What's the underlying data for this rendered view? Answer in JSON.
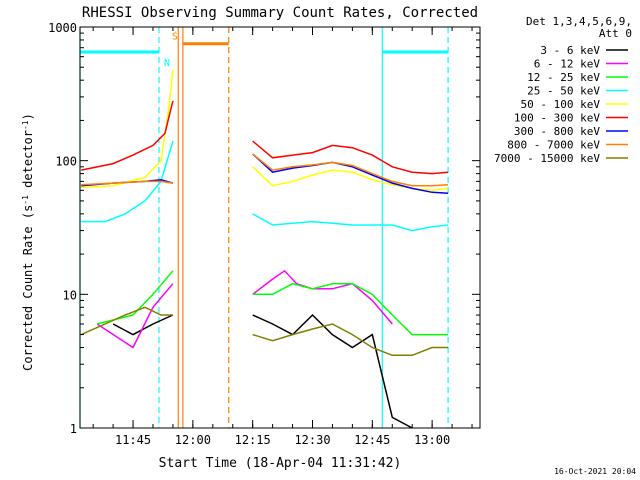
{
  "chart_data": {
    "type": "line",
    "title": "RHESSI Observing Summary Count Rates, Corrected",
    "xlabel": "Start Time (18-Apr-04 11:31:42)",
    "ylabel_parts": [
      "Corrected Count Rate (s",
      "-1",
      " detector",
      "-1",
      ")"
    ],
    "yscale": "log",
    "ylim": [
      1,
      1000
    ],
    "xlim": [
      "11:31:42",
      "13:12:00"
    ],
    "x_ticks": [
      {
        "label": "11:45",
        "t": "11:45"
      },
      {
        "label": "12:00",
        "t": "12:00"
      },
      {
        "label": "12:15",
        "t": "12:15"
      },
      {
        "label": "12:30",
        "t": "12:30"
      },
      {
        "label": "12:45",
        "t": "12:45"
      },
      {
        "label": "13:00",
        "t": "13:00"
      }
    ],
    "y_ticks": [
      {
        "label": "1",
        "v": 1
      },
      {
        "label": "10",
        "v": 10
      },
      {
        "label": "100",
        "v": 100
      },
      {
        "label": "1000",
        "v": 1000
      }
    ],
    "legend_header": [
      "Det 1,3,4,5,6,9,",
      "Att 0"
    ],
    "series": [
      {
        "name": "3 - 6 keV",
        "color": "#000000",
        "points": [
          [
            "11:40",
            6
          ],
          [
            "11:45",
            5
          ],
          [
            "11:50",
            6
          ],
          [
            "11:55",
            7
          ],
          [
            "12:15",
            7
          ],
          [
            "12:20",
            6
          ],
          [
            "12:25",
            5
          ],
          [
            "12:30",
            7
          ],
          [
            "12:35",
            5
          ],
          [
            "12:40",
            4
          ],
          [
            "12:45",
            5
          ],
          [
            "12:50",
            1.2
          ],
          [
            "12:55",
            1
          ]
        ]
      },
      {
        "name": "6 - 12 keV",
        "color": "#ff00ff",
        "points": [
          [
            "11:36",
            6
          ],
          [
            "11:45",
            4
          ],
          [
            "11:50",
            8
          ],
          [
            "11:55",
            12
          ],
          [
            "12:15",
            10
          ],
          [
            "12:20",
            13
          ],
          [
            "12:23",
            15
          ],
          [
            "12:26",
            12
          ],
          [
            "12:30",
            11
          ],
          [
            "12:35",
            11
          ],
          [
            "12:40",
            12
          ],
          [
            "12:45",
            9
          ],
          [
            "12:50",
            6
          ]
        ]
      },
      {
        "name": "12 - 25 keV",
        "color": "#00ff00",
        "points": [
          [
            "11:36",
            6
          ],
          [
            "11:45",
            7
          ],
          [
            "11:50",
            10
          ],
          [
            "11:55",
            15
          ],
          [
            "12:15",
            10
          ],
          [
            "12:20",
            10
          ],
          [
            "12:25",
            12
          ],
          [
            "12:30",
            11
          ],
          [
            "12:35",
            12
          ],
          [
            "12:40",
            12
          ],
          [
            "12:45",
            10
          ],
          [
            "12:50",
            7
          ],
          [
            "12:55",
            5
          ],
          [
            "13:00",
            5
          ],
          [
            "13:04",
            5
          ]
        ]
      },
      {
        "name": "25 - 50 keV",
        "color": "#00ffff",
        "points": [
          [
            "11:32",
            35
          ],
          [
            "11:38",
            35
          ],
          [
            "11:43",
            40
          ],
          [
            "11:48",
            50
          ],
          [
            "11:52",
            70
          ],
          [
            "11:55",
            140
          ],
          [
            "12:15",
            40
          ],
          [
            "12:20",
            33
          ],
          [
            "12:25",
            34
          ],
          [
            "12:30",
            35
          ],
          [
            "12:35",
            34
          ],
          [
            "12:40",
            33
          ],
          [
            "12:45",
            33
          ],
          [
            "12:50",
            33
          ],
          [
            "12:55",
            30
          ],
          [
            "13:00",
            32
          ],
          [
            "13:04",
            33
          ]
        ]
      },
      {
        "name": "50 - 100 keV",
        "color": "#ffff00",
        "points": [
          [
            "11:32",
            63
          ],
          [
            "11:40",
            65
          ],
          [
            "11:48",
            75
          ],
          [
            "11:52",
            100
          ],
          [
            "11:54",
            250
          ],
          [
            "11:55",
            480
          ],
          [
            "12:15",
            90
          ],
          [
            "12:20",
            65
          ],
          [
            "12:25",
            70
          ],
          [
            "12:30",
            78
          ],
          [
            "12:35",
            85
          ],
          [
            "12:40",
            82
          ],
          [
            "12:45",
            72
          ],
          [
            "12:50",
            66
          ],
          [
            "12:55",
            62
          ],
          [
            "13:00",
            60
          ],
          [
            "13:04",
            62
          ]
        ]
      },
      {
        "name": "100 - 300 keV",
        "color": "#ff0000",
        "points": [
          [
            "11:32",
            85
          ],
          [
            "11:40",
            95
          ],
          [
            "11:45",
            110
          ],
          [
            "11:50",
            130
          ],
          [
            "11:53",
            160
          ],
          [
            "11:55",
            280
          ],
          [
            "12:15",
            140
          ],
          [
            "12:20",
            105
          ],
          [
            "12:25",
            110
          ],
          [
            "12:30",
            115
          ],
          [
            "12:35",
            130
          ],
          [
            "12:40",
            125
          ],
          [
            "12:45",
            110
          ],
          [
            "12:50",
            90
          ],
          [
            "12:55",
            82
          ],
          [
            "13:00",
            80
          ],
          [
            "13:04",
            82
          ]
        ]
      },
      {
        "name": "300 - 800 keV",
        "color": "#0000ff",
        "points": [
          [
            "11:32",
            65
          ],
          [
            "11:40",
            68
          ],
          [
            "11:48",
            70
          ],
          [
            "11:52",
            72
          ],
          [
            "11:55",
            68
          ],
          [
            "12:15",
            112
          ],
          [
            "12:20",
            82
          ],
          [
            "12:25",
            88
          ],
          [
            "12:30",
            92
          ],
          [
            "12:35",
            97
          ],
          [
            "12:40",
            90
          ],
          [
            "12:45",
            78
          ],
          [
            "12:50",
            68
          ],
          [
            "12:55",
            62
          ],
          [
            "13:00",
            58
          ],
          [
            "13:04",
            57
          ]
        ]
      },
      {
        "name": "800 - 7000 keV",
        "color": "#ff8000",
        "points": [
          [
            "11:32",
            66
          ],
          [
            "11:40",
            68
          ],
          [
            "11:48",
            70
          ],
          [
            "11:52",
            70
          ],
          [
            "11:55",
            68
          ],
          [
            "12:15",
            112
          ],
          [
            "12:20",
            85
          ],
          [
            "12:25",
            90
          ],
          [
            "12:30",
            93
          ],
          [
            "12:35",
            97
          ],
          [
            "12:40",
            92
          ],
          [
            "12:45",
            80
          ],
          [
            "12:50",
            70
          ],
          [
            "12:55",
            65
          ],
          [
            "13:00",
            65
          ],
          [
            "13:04",
            66
          ]
        ]
      },
      {
        "name": "7000 - 15000 keV",
        "color": "#808000",
        "points": [
          [
            "11:32",
            5
          ],
          [
            "11:38",
            6
          ],
          [
            "11:43",
            7
          ],
          [
            "11:48",
            8
          ],
          [
            "11:52",
            7
          ],
          [
            "11:55",
            7
          ],
          [
            "12:15",
            5
          ],
          [
            "12:20",
            4.5
          ],
          [
            "12:25",
            5
          ],
          [
            "12:30",
            5.5
          ],
          [
            "12:35",
            6
          ],
          [
            "12:40",
            5
          ],
          [
            "12:45",
            4
          ],
          [
            "12:50",
            3.5
          ],
          [
            "12:55",
            3.5
          ],
          [
            "13:00",
            4
          ],
          [
            "13:04",
            4
          ]
        ]
      }
    ],
    "annotations": [
      {
        "label": "N",
        "color": "#00ffff",
        "bars": [
          [
            "11:31:42",
            "11:51:30"
          ],
          [
            "12:47:30",
            "13:04:00"
          ]
        ],
        "level": 650
      },
      {
        "label": "S",
        "color": "#ff8000",
        "bars": [
          [
            "11:57:30",
            "12:09:00"
          ]
        ],
        "level": 750
      }
    ],
    "vlines": [
      {
        "t": "11:31:42",
        "color": "#00ffff",
        "style": "solid"
      },
      {
        "t": "11:51:30",
        "color": "#00ffff",
        "style": "dashed"
      },
      {
        "t": "11:56:20",
        "color": "#ff8000",
        "style": "solid"
      },
      {
        "t": "11:57:30",
        "color": "#ff8000",
        "style": "solid"
      },
      {
        "t": "12:09:00",
        "color": "#ff8000",
        "style": "dashed"
      },
      {
        "t": "12:47:30",
        "color": "#00ffff",
        "style": "solid"
      },
      {
        "t": "13:04:00",
        "color": "#00ffff",
        "style": "dashed"
      }
    ],
    "footer": "16-Oct-2021 20:04"
  }
}
